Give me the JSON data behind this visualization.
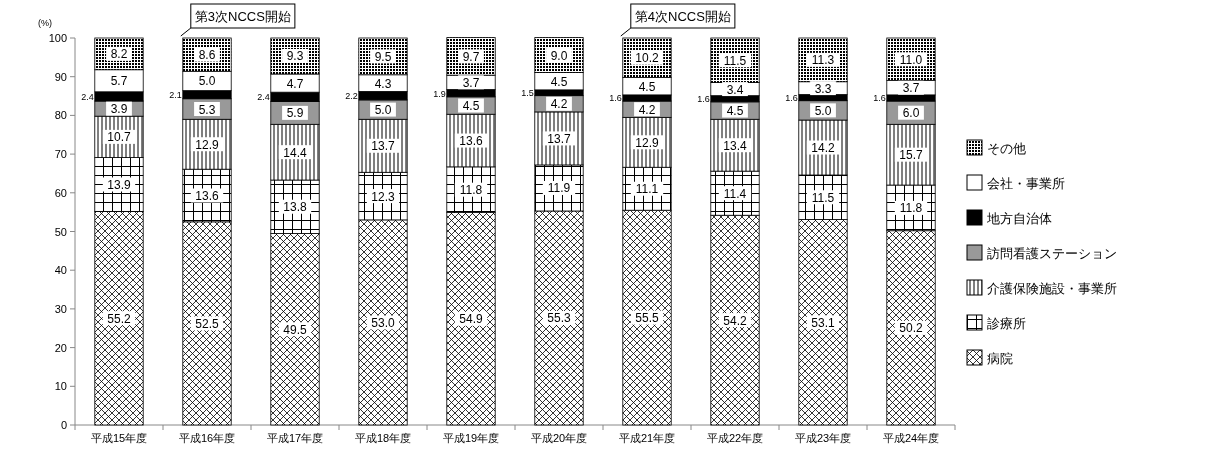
{
  "chart_data": {
    "type": "bar",
    "stacked": true,
    "ylabel": "(%)",
    "ylim": [
      0,
      100
    ],
    "yticks": [
      0,
      10,
      20,
      30,
      40,
      50,
      60,
      70,
      80,
      90,
      100
    ],
    "grid": false,
    "legend": "right",
    "categories": [
      "平成15年度",
      "平成16年度",
      "平成17年度",
      "平成18年度",
      "平成19年度",
      "平成20年度",
      "平成21年度",
      "平成22年度",
      "平成23年度",
      "平成24年度"
    ],
    "annotations": [
      {
        "text": "第3次NCCS開始",
        "x": "平成16年度",
        "y": 100
      },
      {
        "text": "第4次NCCS開始",
        "x": "平成21年度",
        "y": 100
      }
    ],
    "series": [
      {
        "name": "病院",
        "color": "#000000",
        "values": [
          55.2,
          52.5,
          49.5,
          53.0,
          54.9,
          55.3,
          55.5,
          54.2,
          53.1,
          50.2
        ],
        "value_labels": [
          "55.2",
          "52.5",
          "49.5",
          "53.0",
          "54.9",
          "55.3",
          "55.5",
          "54.2",
          "53.1",
          "50.2"
        ]
      },
      {
        "name": "診療所",
        "color": "#000000",
        "values": [
          13.9,
          13.6,
          13.8,
          12.3,
          11.8,
          11.9,
          11.1,
          11.4,
          11.5,
          11.8
        ],
        "value_labels": [
          "13.9",
          "13.6",
          "13.8",
          "12.3",
          "11.8",
          "11.9",
          "11.1",
          "11.4",
          "11.5",
          "11.8"
        ]
      },
      {
        "name": "介護保険施設・事業所",
        "color": "#000000",
        "values": [
          10.7,
          12.9,
          14.4,
          13.7,
          13.6,
          13.7,
          12.9,
          13.4,
          14.2,
          15.7
        ],
        "value_labels": [
          "10.7",
          "12.9",
          "14.4",
          "13.7",
          "13.6",
          "13.7",
          "12.9",
          "13.4",
          "14.2",
          "15.7"
        ]
      },
      {
        "name": "訪問看護ステーション",
        "color": "#999999",
        "values": [
          3.9,
          5.3,
          5.9,
          5.0,
          4.5,
          4.2,
          4.2,
          4.5,
          5.0,
          6.0
        ],
        "value_labels": [
          "3.9",
          "5.3",
          "5.9",
          "5.0",
          "4.5",
          "4.2",
          "4.2",
          "4.5",
          "5.0",
          "6.0"
        ]
      },
      {
        "name": "地方自治体",
        "color": "#000000",
        "values": [
          2.4,
          2.1,
          2.4,
          2.2,
          1.9,
          1.5,
          1.6,
          1.6,
          1.6,
          1.6
        ],
        "value_labels": [
          "2.4",
          "2.1",
          "2.4",
          "2.2",
          "1.9",
          "1.5",
          "1.6",
          "1.6",
          "1.6",
          "1.6"
        ]
      },
      {
        "name": "会社・事業所",
        "color": "#ffffff",
        "values": [
          5.7,
          5.0,
          4.7,
          4.3,
          3.7,
          4.5,
          4.5,
          3.4,
          3.3,
          3.7
        ],
        "value_labels": [
          "5.7",
          "5.0",
          "4.7",
          "4.3",
          "3.7",
          "4.5",
          "4.5",
          "3.4",
          "3.3",
          "3.7"
        ]
      },
      {
        "name": "その他",
        "color": "#000000",
        "values": [
          8.2,
          8.6,
          9.3,
          9.5,
          9.7,
          9.0,
          10.2,
          11.5,
          11.3,
          11.0
        ],
        "value_labels": [
          "8.2",
          "8.6",
          "9.3",
          "9.5",
          "9.7",
          "9.0",
          "10.2",
          "11.5",
          "11.3",
          "11.0"
        ]
      }
    ]
  }
}
